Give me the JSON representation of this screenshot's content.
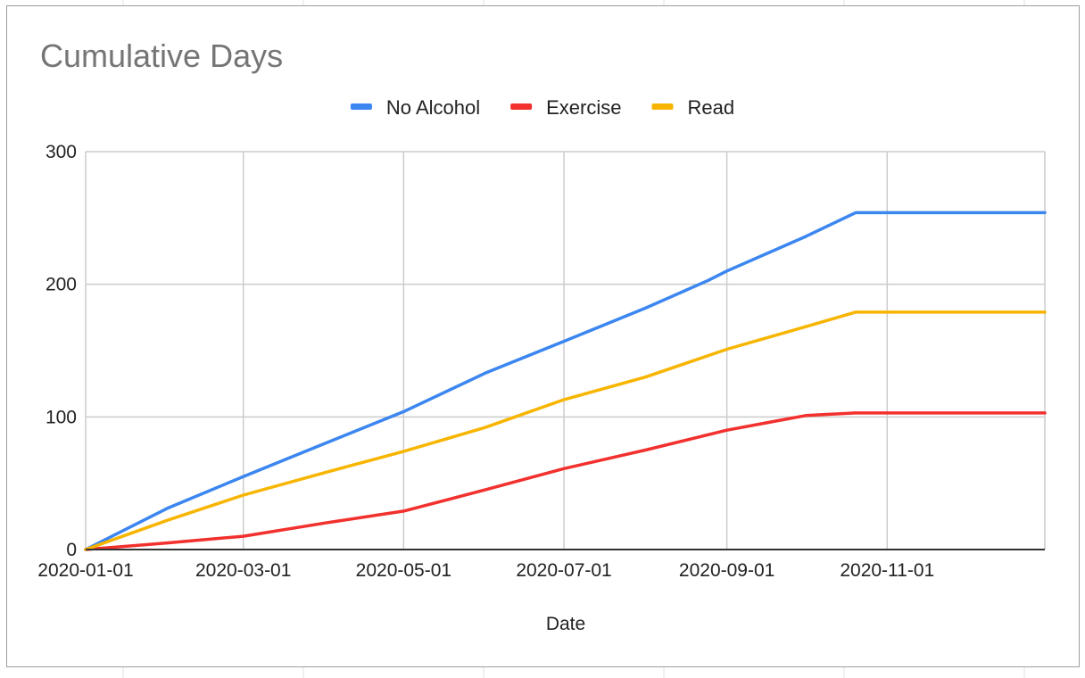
{
  "chart_data": {
    "type": "line",
    "title": "Cumulative Days",
    "xlabel": "Date",
    "ylabel": "",
    "ylim": [
      0,
      300
    ],
    "xlim": [
      "2020-01-01",
      "2020-12-31"
    ],
    "grid": true,
    "legend_position": "top",
    "x_ticks": [
      "2020-01-01",
      "2020-03-01",
      "2020-05-01",
      "2020-07-01",
      "2020-09-01",
      "2020-11-01"
    ],
    "y_ticks": [
      0,
      100,
      200,
      300
    ],
    "series": [
      {
        "name": "No Alcohol",
        "color": "#3b86f0",
        "points": [
          [
            "2020-01-01",
            0
          ],
          [
            "2020-02-01",
            31
          ],
          [
            "2020-03-01",
            55
          ],
          [
            "2020-04-01",
            80
          ],
          [
            "2020-05-01",
            104
          ],
          [
            "2020-06-01",
            133
          ],
          [
            "2020-07-01",
            157
          ],
          [
            "2020-08-01",
            182
          ],
          [
            "2020-08-25",
            203
          ],
          [
            "2020-09-01",
            210
          ],
          [
            "2020-10-01",
            236
          ],
          [
            "2020-10-20",
            254
          ],
          [
            "2020-12-31",
            254
          ]
        ]
      },
      {
        "name": "Exercise",
        "color": "#f2302d",
        "points": [
          [
            "2020-01-01",
            0
          ],
          [
            "2020-02-01",
            5
          ],
          [
            "2020-03-01",
            10
          ],
          [
            "2020-04-01",
            20
          ],
          [
            "2020-05-01",
            29
          ],
          [
            "2020-06-01",
            45
          ],
          [
            "2020-07-01",
            61
          ],
          [
            "2020-08-01",
            75
          ],
          [
            "2020-09-01",
            90
          ],
          [
            "2020-10-01",
            101
          ],
          [
            "2020-10-20",
            103
          ],
          [
            "2020-12-31",
            103
          ]
        ]
      },
      {
        "name": "Read",
        "color": "#f7b500",
        "points": [
          [
            "2020-01-01",
            0
          ],
          [
            "2020-02-01",
            22
          ],
          [
            "2020-03-01",
            41
          ],
          [
            "2020-04-01",
            58
          ],
          [
            "2020-05-01",
            74
          ],
          [
            "2020-06-01",
            92
          ],
          [
            "2020-07-01",
            113
          ],
          [
            "2020-08-01",
            130
          ],
          [
            "2020-09-01",
            151
          ],
          [
            "2020-10-01",
            168
          ],
          [
            "2020-10-20",
            179
          ],
          [
            "2020-12-31",
            179
          ]
        ]
      }
    ]
  }
}
